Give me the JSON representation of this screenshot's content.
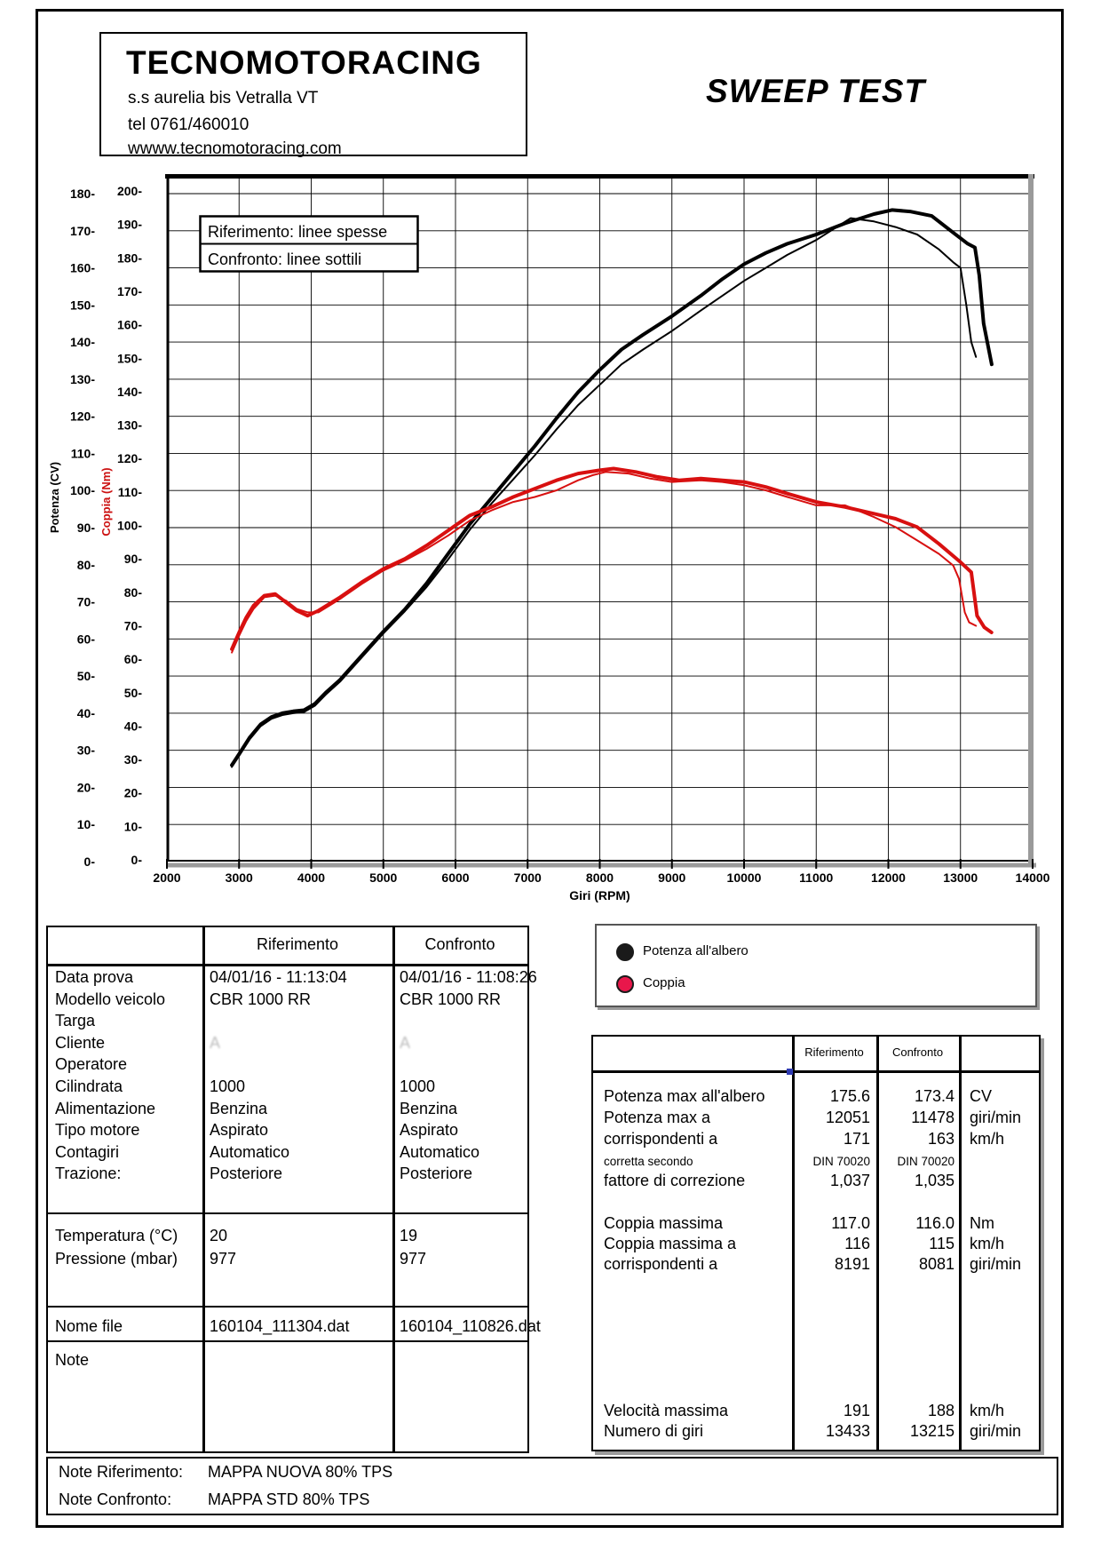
{
  "header": {
    "title": "TECNOMOTORACING",
    "address": "s.s aurelia bis  Vetralla  VT",
    "phone": "tel 0761/460010",
    "website": "wwww.tecnomotoracing.com"
  },
  "report_title": "SWEEP TEST",
  "chart_data": {
    "type": "line",
    "xlabel": "Giri (RPM)",
    "ylabel_outer": "Potenza (CV)",
    "ylabel_inner": "Coppia (Nm)",
    "x_range": [
      2000,
      14000
    ],
    "x_tick_step": 1000,
    "cv_axis": {
      "min": 0,
      "max": 180,
      "step": 10
    },
    "nm_axis": {
      "min": 0,
      "max": 200,
      "step": 10
    },
    "grid": true,
    "inset_legend": [
      "Riferimento: linee spesse",
      "Confronto: linee sottili"
    ],
    "colors": {
      "power": "#000000",
      "torque": "#d81010"
    },
    "series": [
      {
        "name": "potenza-riferimento",
        "axis": "cv",
        "color": "#000000",
        "width": 4,
        "points": [
          [
            2900,
            26
          ],
          [
            3000,
            29
          ],
          [
            3150,
            33.5
          ],
          [
            3300,
            37
          ],
          [
            3450,
            39
          ],
          [
            3600,
            40
          ],
          [
            3750,
            40.5
          ],
          [
            3900,
            40.8
          ],
          [
            4050,
            42.5
          ],
          [
            4200,
            45.5
          ],
          [
            4400,
            49
          ],
          [
            4700,
            55.5
          ],
          [
            5000,
            62
          ],
          [
            5300,
            68
          ],
          [
            5600,
            75
          ],
          [
            5900,
            83
          ],
          [
            6200,
            91
          ],
          [
            6500,
            98
          ],
          [
            6800,
            105
          ],
          [
            7100,
            112
          ],
          [
            7400,
            119.5
          ],
          [
            7700,
            126.5
          ],
          [
            8000,
            132.5
          ],
          [
            8300,
            138
          ],
          [
            8600,
            142
          ],
          [
            9000,
            147
          ],
          [
            9400,
            152.5
          ],
          [
            9700,
            157
          ],
          [
            10000,
            161
          ],
          [
            10300,
            164
          ],
          [
            10600,
            166.5
          ],
          [
            11000,
            169
          ],
          [
            11400,
            172
          ],
          [
            11800,
            174.5
          ],
          [
            12051,
            175.6
          ],
          [
            12300,
            175.2
          ],
          [
            12600,
            174
          ],
          [
            12900,
            169.5
          ],
          [
            13100,
            166.5
          ],
          [
            13200,
            165.5
          ],
          [
            13260,
            158
          ],
          [
            13320,
            145
          ],
          [
            13433,
            134
          ]
        ]
      },
      {
        "name": "potenza-confronto",
        "axis": "cv",
        "color": "#000000",
        "width": 2,
        "points": [
          [
            2900,
            25.5
          ],
          [
            3000,
            28.5
          ],
          [
            3150,
            33
          ],
          [
            3300,
            36.5
          ],
          [
            3450,
            38.5
          ],
          [
            3600,
            39.5
          ],
          [
            3750,
            40
          ],
          [
            3900,
            40.3
          ],
          [
            4050,
            42
          ],
          [
            4200,
            45
          ],
          [
            4400,
            48.5
          ],
          [
            4700,
            55
          ],
          [
            5000,
            61.5
          ],
          [
            5300,
            67.5
          ],
          [
            5600,
            74
          ],
          [
            5900,
            81.5
          ],
          [
            6200,
            89.5
          ],
          [
            6500,
            96.5
          ],
          [
            6800,
            103
          ],
          [
            7100,
            109.5
          ],
          [
            7400,
            116.5
          ],
          [
            7700,
            123
          ],
          [
            8000,
            128.5
          ],
          [
            8300,
            134
          ],
          [
            8600,
            138
          ],
          [
            9000,
            143
          ],
          [
            9400,
            148.5
          ],
          [
            9700,
            152.5
          ],
          [
            10000,
            156.5
          ],
          [
            10300,
            160
          ],
          [
            10600,
            163.5
          ],
          [
            11000,
            167.5
          ],
          [
            11478,
            173.4
          ],
          [
            11800,
            172.5
          ],
          [
            12100,
            171
          ],
          [
            12400,
            169
          ],
          [
            12700,
            165
          ],
          [
            12900,
            161.5
          ],
          [
            13000,
            160
          ],
          [
            13080,
            150
          ],
          [
            13150,
            140
          ],
          [
            13215,
            136
          ]
        ]
      },
      {
        "name": "coppia-riferimento",
        "axis": "nm",
        "color": "#d81010",
        "width": 4,
        "points": [
          [
            2900,
            63
          ],
          [
            3000,
            68
          ],
          [
            3100,
            72.5
          ],
          [
            3200,
            76
          ],
          [
            3350,
            79
          ],
          [
            3500,
            79.5
          ],
          [
            3650,
            77
          ],
          [
            3800,
            74.5
          ],
          [
            3950,
            73
          ],
          [
            4100,
            74.5
          ],
          [
            4250,
            76.5
          ],
          [
            4400,
            78.5
          ],
          [
            4700,
            83
          ],
          [
            5000,
            87
          ],
          [
            5300,
            90
          ],
          [
            5600,
            94
          ],
          [
            5900,
            98.5
          ],
          [
            6200,
            103
          ],
          [
            6500,
            105.5
          ],
          [
            6800,
            108.5
          ],
          [
            7100,
            111
          ],
          [
            7400,
            113.5
          ],
          [
            7700,
            115.5
          ],
          [
            8000,
            116.5
          ],
          [
            8191,
            117
          ],
          [
            8500,
            116
          ],
          [
            8800,
            114.5
          ],
          [
            9100,
            113.5
          ],
          [
            9400,
            114
          ],
          [
            9700,
            113.5
          ],
          [
            10000,
            113
          ],
          [
            10300,
            111.5
          ],
          [
            10600,
            109.5
          ],
          [
            11000,
            107
          ],
          [
            11400,
            105.5
          ],
          [
            11800,
            103.5
          ],
          [
            12100,
            102
          ],
          [
            12400,
            99.5
          ],
          [
            12700,
            94.5
          ],
          [
            13000,
            89
          ],
          [
            13150,
            86
          ],
          [
            13230,
            73
          ],
          [
            13330,
            69.5
          ],
          [
            13430,
            68
          ]
        ]
      },
      {
        "name": "coppia-confronto",
        "axis": "nm",
        "color": "#d81010",
        "width": 2,
        "points": [
          [
            2900,
            62
          ],
          [
            3000,
            67
          ],
          [
            3100,
            71.5
          ],
          [
            3200,
            75
          ],
          [
            3350,
            78.5
          ],
          [
            3500,
            79
          ],
          [
            3650,
            77.5
          ],
          [
            3800,
            75
          ],
          [
            3950,
            74
          ],
          [
            4100,
            74
          ],
          [
            4250,
            76
          ],
          [
            4400,
            78
          ],
          [
            4700,
            82.5
          ],
          [
            5000,
            86.5
          ],
          [
            5300,
            89.5
          ],
          [
            5600,
            93
          ],
          [
            5900,
            97
          ],
          [
            6200,
            101.5
          ],
          [
            6500,
            104.5
          ],
          [
            6800,
            107
          ],
          [
            7100,
            108.5
          ],
          [
            7400,
            110.5
          ],
          [
            7700,
            113.5
          ],
          [
            7900,
            115
          ],
          [
            8081,
            116
          ],
          [
            8400,
            115.5
          ],
          [
            8700,
            114
          ],
          [
            9000,
            113
          ],
          [
            9400,
            113.5
          ],
          [
            9700,
            113
          ],
          [
            10000,
            112
          ],
          [
            10300,
            110.5
          ],
          [
            10600,
            108.5
          ],
          [
            11000,
            106
          ],
          [
            11400,
            106
          ],
          [
            11800,
            102.5
          ],
          [
            12100,
            99.5
          ],
          [
            12400,
            95.5
          ],
          [
            12700,
            91.5
          ],
          [
            12900,
            88
          ],
          [
            12980,
            84
          ],
          [
            13060,
            74
          ],
          [
            13120,
            71
          ],
          [
            13215,
            70
          ]
        ]
      }
    ]
  },
  "legend": {
    "items": [
      {
        "label": "Potenza all'albero",
        "color": "#1a1a1a"
      },
      {
        "label": "Coppia",
        "color": "#e8174b"
      }
    ]
  },
  "info_table": {
    "headers": [
      "",
      "Riferimento",
      "Confronto"
    ],
    "sections": [
      {
        "rows": [
          {
            "label": "Data prova",
            "rif": "04/01/16 - 11:13:04",
            "conf": "04/01/16 - 11:08:26"
          },
          {
            "label": "Modello veicolo",
            "rif": "CBR 1000 RR",
            "conf": "CBR 1000 RR"
          },
          {
            "label": "Targa",
            "rif": "",
            "conf": ""
          },
          {
            "label": "Cliente",
            "rif": "A",
            "conf": "A",
            "redacted": true
          },
          {
            "label": "Operatore",
            "rif": "",
            "conf": ""
          },
          {
            "label": "Cilindrata",
            "rif": "1000",
            "conf": "1000"
          },
          {
            "label": "Alimentazione",
            "rif": "Benzina",
            "conf": "Benzina"
          },
          {
            "label": "Tipo motore",
            "rif": "Aspirato",
            "conf": "Aspirato"
          },
          {
            "label": "Contagiri",
            "rif": "Automatico",
            "conf": "Automatico"
          },
          {
            "label": "Trazione:",
            "rif": "Posteriore",
            "conf": "Posteriore"
          }
        ]
      },
      {
        "rows": [
          {
            "label": "Temperatura (°C)",
            "rif": "20",
            "conf": "19"
          },
          {
            "label": "Pressione (mbar)",
            "rif": "977",
            "conf": "977"
          }
        ]
      },
      {
        "rows": [
          {
            "label": "Nome file",
            "rif": "160104_111304.dat",
            "conf": "160104_110826.dat"
          }
        ]
      },
      {
        "rows": [
          {
            "label": "Note",
            "rif": "",
            "conf": ""
          }
        ]
      }
    ]
  },
  "results_table": {
    "col_headers": [
      "Riferimento",
      "Confronto"
    ],
    "rows": [
      {
        "label": "Potenza max all'albero",
        "rif": "175.6",
        "conf": "173.4",
        "unit": "CV"
      },
      {
        "label": "Potenza max a",
        "rif": "12051",
        "conf": "11478",
        "unit": "giri/min"
      },
      {
        "label": "corrispondenti a",
        "rif": "171",
        "conf": "163",
        "unit": "km/h"
      },
      {
        "label": "corretta secondo",
        "rif": "DIN 70020",
        "conf": "DIN 70020",
        "unit": "",
        "small": true
      },
      {
        "label": "fattore di correzione",
        "rif": "1,037",
        "conf": "1,035",
        "unit": ""
      },
      {
        "label": "Coppia massima",
        "rif": "117.0",
        "conf": "116.0",
        "unit": "Nm"
      },
      {
        "label": "Coppia massima a",
        "rif": "116",
        "conf": "115",
        "unit": "km/h"
      },
      {
        "label": "corrispondenti a",
        "rif": "8191",
        "conf": "8081",
        "unit": "giri/min"
      },
      {
        "label": "Velocità massima",
        "rif": "191",
        "conf": "188",
        "unit": "km/h"
      },
      {
        "label": "Numero di giri",
        "rif": "13433",
        "conf": "13215",
        "unit": "giri/min"
      }
    ]
  },
  "footer_notes": {
    "rows": [
      {
        "label": "Note Riferimento:",
        "value": "MAPPA NUOVA 80% TPS"
      },
      {
        "label": "Note Confronto:",
        "value": "MAPPA STD 80% TPS"
      }
    ]
  }
}
